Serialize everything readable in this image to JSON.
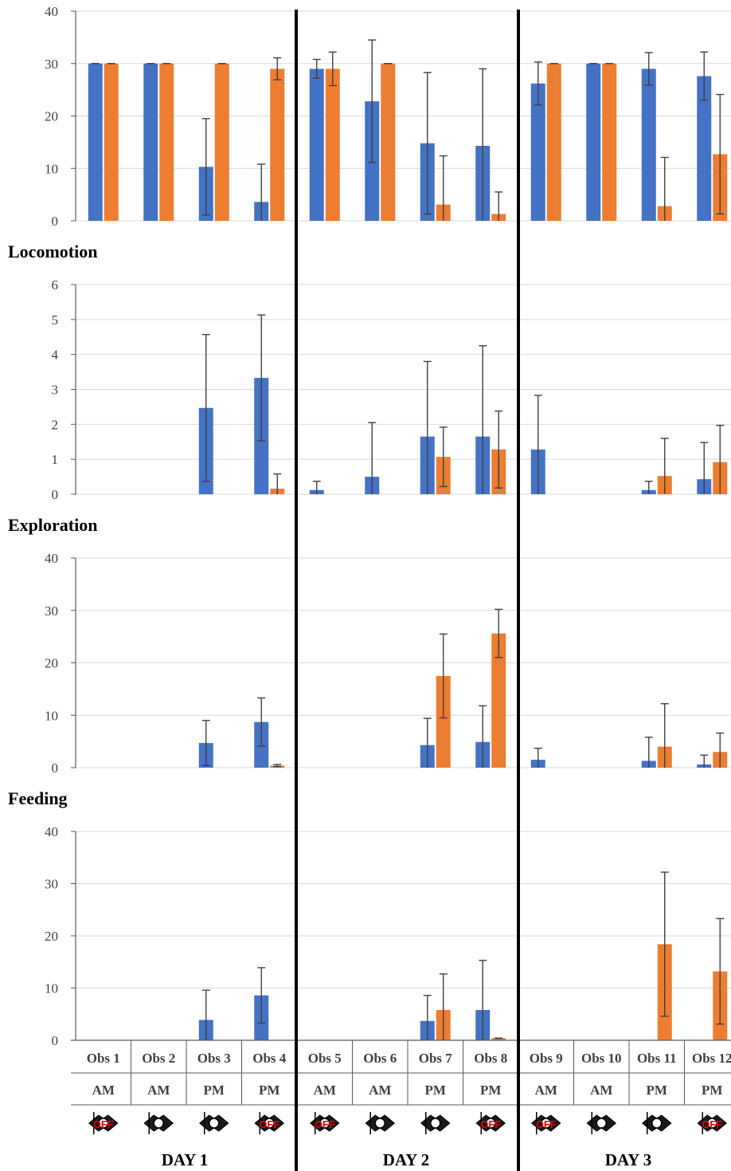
{
  "colors": {
    "series_a": "#4472c4",
    "series_b": "#ed7d31",
    "grid": "#d9d9d9",
    "axis": "#595959",
    "error": "#404040"
  },
  "chart_data": [
    {
      "type": "bar",
      "title": "",
      "ylim": [
        0,
        40
      ],
      "yticks": [
        0,
        10,
        20,
        30,
        40
      ],
      "categories": [
        "Obs 1",
        "Obs 2",
        "Obs 3",
        "Obs 4",
        "Obs 5",
        "Obs 6",
        "Obs 7",
        "Obs 8",
        "Obs 9",
        "Obs 10",
        "Obs 11",
        "Obs 12"
      ],
      "series": [
        {
          "values": [
            30,
            30,
            10.3,
            3.6,
            29,
            22.8,
            14.8,
            14.3,
            26.2,
            30,
            29,
            27.6
          ],
          "errors": [
            0,
            0,
            9.2,
            7.2,
            1.8,
            11.7,
            13.5,
            14.7,
            4.1,
            0,
            3.1,
            4.6
          ]
        },
        {
          "values": [
            30,
            30,
            30,
            29,
            29,
            30,
            3.1,
            1.3,
            30,
            30,
            2.8,
            12.7
          ],
          "errors": [
            0,
            0,
            0,
            2.1,
            3.2,
            0,
            9.3,
            4.2,
            0,
            0,
            9.3,
            11.4
          ]
        }
      ]
    },
    {
      "type": "bar",
      "title": "Locomotion",
      "ylim": [
        0,
        6
      ],
      "yticks": [
        0,
        1,
        2,
        3,
        4,
        5,
        6
      ],
      "categories": [
        "Obs 1",
        "Obs 2",
        "Obs 3",
        "Obs 4",
        "Obs 5",
        "Obs 6",
        "Obs 7",
        "Obs 8",
        "Obs 9",
        "Obs 10",
        "Obs 11",
        "Obs 12"
      ],
      "series": [
        {
          "values": [
            0,
            0,
            2.47,
            3.33,
            0.12,
            0.5,
            1.65,
            1.65,
            1.28,
            0,
            0.12,
            0.43
          ],
          "errors": [
            0,
            0,
            2.1,
            1.8,
            0.25,
            1.55,
            2.15,
            2.6,
            1.55,
            0,
            0.25,
            1.05
          ]
        },
        {
          "values": [
            0,
            0,
            0,
            0.16,
            0,
            0,
            1.07,
            1.28,
            0,
            0,
            0.52,
            0.92
          ],
          "errors": [
            0,
            0,
            0,
            0.42,
            0,
            0,
            0.85,
            1.1,
            0,
            0,
            1.08,
            1.05
          ]
        }
      ]
    },
    {
      "type": "bar",
      "title": "Exploration",
      "ylim": [
        0,
        40
      ],
      "yticks": [
        0,
        10,
        20,
        30,
        40
      ],
      "categories": [
        "Obs 1",
        "Obs 2",
        "Obs 3",
        "Obs 4",
        "Obs 5",
        "Obs 6",
        "Obs 7",
        "Obs 8",
        "Obs 9",
        "Obs 10",
        "Obs 11",
        "Obs 12"
      ],
      "series": [
        {
          "values": [
            0,
            0,
            4.7,
            8.7,
            0,
            0,
            4.3,
            4.9,
            1.5,
            0,
            1.3,
            0.6
          ],
          "errors": [
            0,
            0,
            4.3,
            4.6,
            0,
            0,
            5.1,
            6.9,
            2.2,
            0,
            4.5,
            1.8
          ]
        },
        {
          "values": [
            0,
            0,
            0,
            0.4,
            0,
            0,
            17.5,
            25.6,
            0,
            0,
            4,
            3
          ],
          "errors": [
            0,
            0,
            0,
            0.2,
            0,
            0,
            8,
            4.6,
            0,
            0,
            8.2,
            3.6
          ]
        }
      ]
    },
    {
      "type": "bar",
      "title": "Feeding",
      "ylim": [
        0,
        40
      ],
      "yticks": [
        0,
        10,
        20,
        30,
        40
      ],
      "categories": [
        "Obs 1",
        "Obs 2",
        "Obs 3",
        "Obs 4",
        "Obs 5",
        "Obs 6",
        "Obs 7",
        "Obs 8",
        "Obs 9",
        "Obs 10",
        "Obs 11",
        "Obs 12"
      ],
      "series": [
        {
          "values": [
            0,
            0,
            3.9,
            8.6,
            0,
            0,
            3.7,
            5.8,
            0,
            0,
            0,
            0
          ],
          "errors": [
            0,
            0,
            5.7,
            5.3,
            0,
            0,
            4.9,
            9.5,
            0,
            0,
            0,
            0
          ]
        },
        {
          "values": [
            0,
            0,
            0,
            0,
            0,
            0,
            5.8,
            0.4,
            0,
            0,
            18.4,
            13.2
          ],
          "errors": [
            0,
            0,
            0,
            0,
            0,
            0,
            6.9,
            0,
            0,
            0,
            13.8,
            10.1
          ]
        }
      ]
    }
  ],
  "xaxis": {
    "obs": [
      "Obs 1",
      "Obs 2",
      "Obs 3",
      "Obs 4",
      "Obs 5",
      "Obs 6",
      "Obs 7",
      "Obs 8",
      "Obs 9",
      "Obs 10",
      "Obs 11",
      "Obs 12"
    ],
    "period": [
      "AM",
      "AM",
      "PM",
      "PM",
      "AM",
      "AM",
      "PM",
      "PM",
      "AM",
      "AM",
      "PM",
      "PM"
    ],
    "light": [
      "OFF",
      "on",
      "on",
      "OFF",
      "OFF",
      "on",
      "on",
      "OFF",
      "OFF",
      "on",
      "on",
      "OFF"
    ],
    "days": [
      "DAY 1",
      "DAY 2",
      "DAY 3"
    ]
  }
}
